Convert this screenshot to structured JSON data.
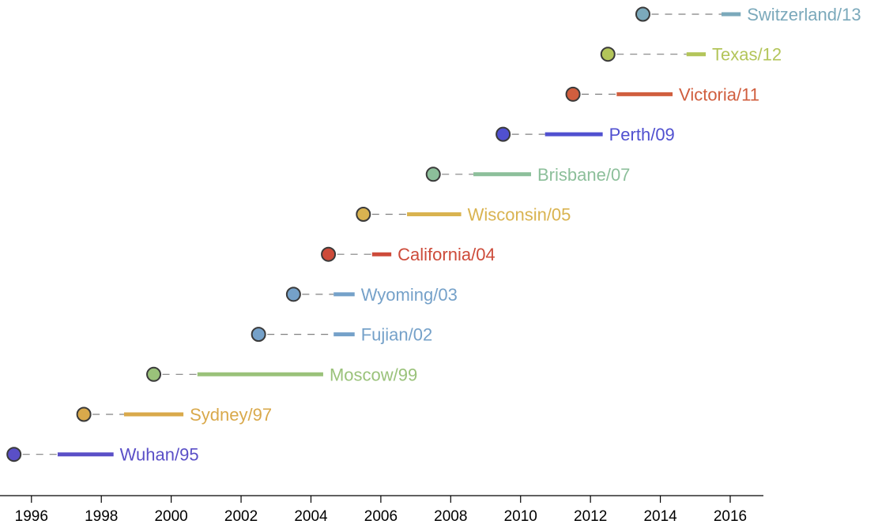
{
  "chart_data": {
    "type": "scatter",
    "title": "",
    "xlabel": "",
    "ylabel": "",
    "xlim": [
      1995.1,
      2016.95
    ],
    "x_ticks": [
      1996,
      1998,
      2000,
      2002,
      2004,
      2006,
      2008,
      2010,
      2012,
      2014,
      2016
    ],
    "x_tick_labels": [
      "1996",
      "1998",
      "2000",
      "2002",
      "2004",
      "2006",
      "2008",
      "2010",
      "2012",
      "2014",
      "2016"
    ],
    "grid": false,
    "legend": "none",
    "strains": [
      {
        "label": "Wuhan/95",
        "emergence": 1995.5,
        "circulation_start": 1996.75,
        "circulation_end": 1998.35,
        "color": "#5a4fc7"
      },
      {
        "label": "Sydney/97",
        "emergence": 1997.5,
        "circulation_start": 1998.65,
        "circulation_end": 2000.35,
        "color": "#d9a94b"
      },
      {
        "label": "Moscow/99",
        "emergence": 1999.5,
        "circulation_start": 2000.75,
        "circulation_end": 2004.35,
        "color": "#9ac27a"
      },
      {
        "label": "Fujian/02",
        "emergence": 2002.5,
        "circulation_start": 2004.65,
        "circulation_end": 2005.25,
        "color": "#75a1c9"
      },
      {
        "label": "Wyoming/03",
        "emergence": 2003.5,
        "circulation_start": 2004.65,
        "circulation_end": 2005.25,
        "color": "#75a1c9"
      },
      {
        "label": "California/04",
        "emergence": 2004.5,
        "circulation_start": 2005.75,
        "circulation_end": 2006.3,
        "color": "#cd4b3a"
      },
      {
        "label": "Wisconsin/05",
        "emergence": 2005.5,
        "circulation_start": 2006.75,
        "circulation_end": 2008.3,
        "color": "#d9b350"
      },
      {
        "label": "Brisbane/07",
        "emergence": 2007.5,
        "circulation_start": 2008.65,
        "circulation_end": 2010.3,
        "color": "#8cbf9a"
      },
      {
        "label": "Perth/09",
        "emergence": 2009.5,
        "circulation_start": 2010.7,
        "circulation_end": 2012.35,
        "color": "#5050d0"
      },
      {
        "label": "Victoria/11",
        "emergence": 2011.5,
        "circulation_start": 2012.75,
        "circulation_end": 2014.35,
        "color": "#d05e3e"
      },
      {
        "label": "Texas/12",
        "emergence": 2012.5,
        "circulation_start": 2014.75,
        "circulation_end": 2015.3,
        "color": "#b3c55a"
      },
      {
        "label": "Switzerland/13",
        "emergence": 2013.5,
        "circulation_start": 2015.75,
        "circulation_end": 2016.3,
        "color": "#7ba9bb"
      }
    ]
  }
}
